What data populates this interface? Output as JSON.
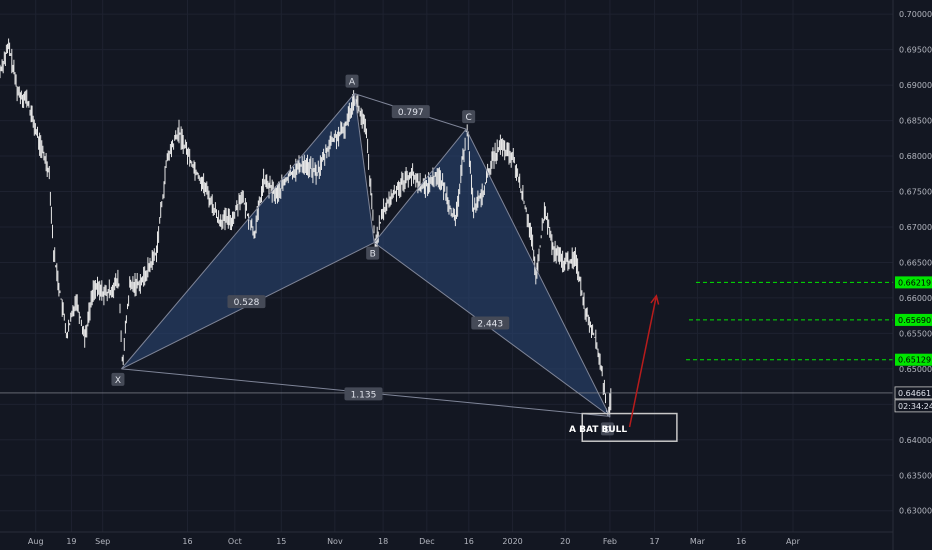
{
  "chart_data": {
    "type": "line",
    "instrument_note": "",
    "y_range": [
      0.627,
      0.702
    ],
    "y_ticks": [
      "0.70000",
      "0.69500",
      "0.69000",
      "0.68500",
      "0.68000",
      "0.67500",
      "0.67000",
      "0.66500",
      "0.66000",
      "0.65500",
      "0.65000",
      "0.64500",
      "0.64000",
      "0.63500",
      "0.63000"
    ],
    "y_tick_values": [
      0.7,
      0.695,
      0.69,
      0.685,
      0.68,
      0.675,
      0.67,
      0.665,
      0.66,
      0.655,
      0.65,
      0.645,
      0.64,
      0.635,
      0.63
    ],
    "x_ticks": [
      {
        "label": "Aug",
        "t": 0.04
      },
      {
        "label": "19",
        "t": 0.08
      },
      {
        "label": "Sep",
        "t": 0.115
      },
      {
        "label": "16",
        "t": 0.21
      },
      {
        "label": "Oct",
        "t": 0.263
      },
      {
        "label": "15",
        "t": 0.315
      },
      {
        "label": "Nov",
        "t": 0.375
      },
      {
        "label": "18",
        "t": 0.429
      },
      {
        "label": "Dec",
        "t": 0.478
      },
      {
        "label": "16",
        "t": 0.525
      },
      {
        "label": "2020",
        "t": 0.574
      },
      {
        "label": "20",
        "t": 0.633
      },
      {
        "label": "Feb",
        "t": 0.683
      },
      {
        "label": "17",
        "t": 0.733
      },
      {
        "label": "Mar",
        "t": 0.781
      },
      {
        "label": "16",
        "t": 0.83
      },
      {
        "label": "Apr",
        "t": 0.888
      }
    ],
    "price_path": [
      [
        0.0,
        0.692
      ],
      [
        0.01,
        0.6955
      ],
      [
        0.02,
        0.689
      ],
      [
        0.03,
        0.688
      ],
      [
        0.045,
        0.6815
      ],
      [
        0.055,
        0.678
      ],
      [
        0.06,
        0.6665
      ],
      [
        0.075,
        0.6545
      ],
      [
        0.085,
        0.66
      ],
      [
        0.095,
        0.6545
      ],
      [
        0.105,
        0.6615
      ],
      [
        0.12,
        0.6605
      ],
      [
        0.133,
        0.6625
      ],
      [
        0.137,
        0.6505
      ],
      [
        0.145,
        0.6615
      ],
      [
        0.16,
        0.6625
      ],
      [
        0.175,
        0.6665
      ],
      [
        0.187,
        0.6795
      ],
      [
        0.2,
        0.6835
      ],
      [
        0.215,
        0.679
      ],
      [
        0.23,
        0.6755
      ],
      [
        0.245,
        0.671
      ],
      [
        0.26,
        0.671
      ],
      [
        0.27,
        0.6745
      ],
      [
        0.285,
        0.669
      ],
      [
        0.295,
        0.6765
      ],
      [
        0.31,
        0.6745
      ],
      [
        0.325,
        0.6775
      ],
      [
        0.34,
        0.679
      ],
      [
        0.355,
        0.6775
      ],
      [
        0.37,
        0.682
      ],
      [
        0.385,
        0.6835
      ],
      [
        0.397,
        0.6885
      ],
      [
        0.41,
        0.6835
      ],
      [
        0.42,
        0.6675
      ],
      [
        0.43,
        0.6725
      ],
      [
        0.445,
        0.6755
      ],
      [
        0.46,
        0.6775
      ],
      [
        0.475,
        0.6755
      ],
      [
        0.49,
        0.6775
      ],
      [
        0.5,
        0.6745
      ],
      [
        0.51,
        0.6705
      ],
      [
        0.523,
        0.6845
      ],
      [
        0.53,
        0.6725
      ],
      [
        0.54,
        0.6745
      ],
      [
        0.55,
        0.679
      ],
      [
        0.56,
        0.6815
      ],
      [
        0.575,
        0.6795
      ],
      [
        0.585,
        0.6745
      ],
      [
        0.595,
        0.669
      ],
      [
        0.6,
        0.6625
      ],
      [
        0.61,
        0.6725
      ],
      [
        0.62,
        0.6665
      ],
      [
        0.632,
        0.665
      ],
      [
        0.645,
        0.6655
      ],
      [
        0.655,
        0.6585
      ],
      [
        0.665,
        0.655
      ],
      [
        0.673,
        0.6505
      ],
      [
        0.68,
        0.6435
      ],
      [
        0.684,
        0.6455
      ]
    ],
    "pattern_points": [
      {
        "label": "X",
        "t": 0.136,
        "y": 0.65
      },
      {
        "label": "A",
        "t": 0.397,
        "y": 0.6888
      },
      {
        "label": "B",
        "t": 0.419,
        "y": 0.6678
      },
      {
        "label": "C",
        "t": 0.522,
        "y": 0.6838
      },
      {
        "label": "D",
        "t": 0.683,
        "y": 0.6433
      }
    ],
    "ratios": [
      {
        "value": "0.528",
        "t": 0.276,
        "y": 0.6594
      },
      {
        "value": "0.797",
        "t": 0.46,
        "y": 0.6862
      },
      {
        "value": "2.443",
        "t": 0.549,
        "y": 0.6564
      },
      {
        "value": "1.135",
        "t": 0.407,
        "y": 0.6464
      }
    ],
    "pattern_name": "A BAT BULL",
    "target_levels": [
      {
        "value": "0.66219",
        "y": 0.66219,
        "color": "#00e600"
      },
      {
        "value": "0.65690",
        "y": 0.6569,
        "color": "#00e600"
      },
      {
        "value": "0.65129",
        "y": 0.65129,
        "color": "#00e600"
      }
    ],
    "current_price": {
      "value": "0.64661",
      "y": 0.64661
    },
    "countdown": "02:34:24",
    "projection_arrow": {
      "from": [
        0.705,
        0.6418
      ],
      "to": [
        0.735,
        0.6603
      ],
      "color": "#b71c1c"
    },
    "d_zone_box": {
      "t0": 0.652,
      "t1": 0.758,
      "y0": 0.6437,
      "y1": 0.6398
    }
  }
}
